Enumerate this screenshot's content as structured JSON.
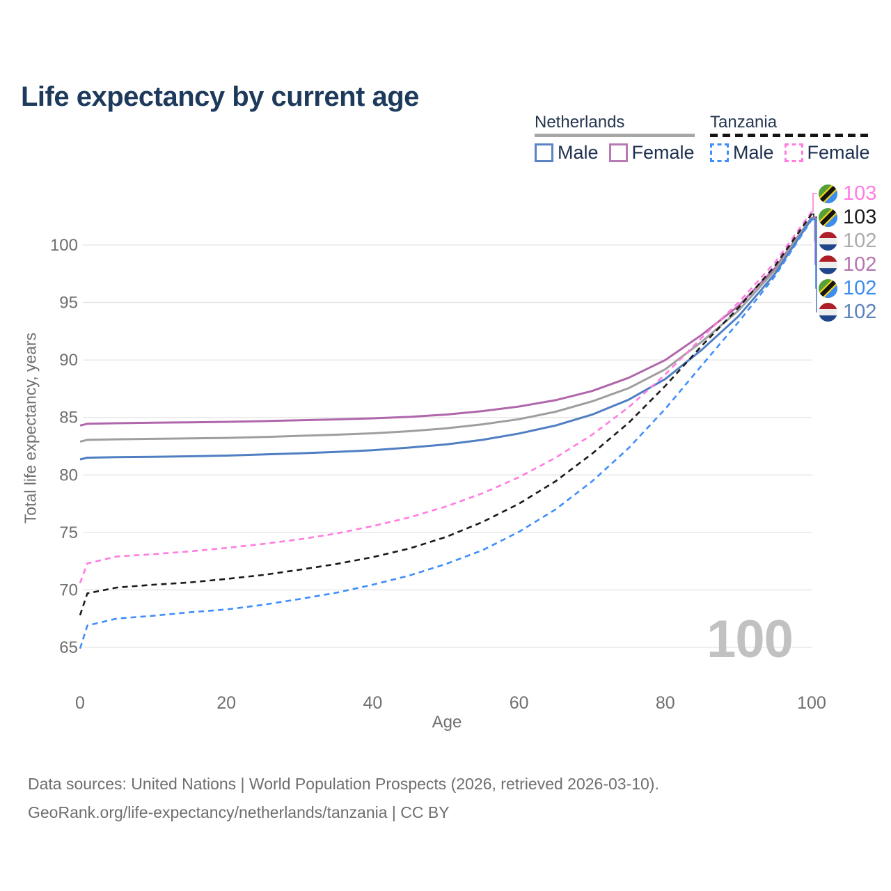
{
  "title": "Life expectancy by current age",
  "legend": {
    "groups": [
      {
        "label": "Netherlands",
        "line_style": "solid",
        "line_color": "#a6a6a6",
        "items": [
          {
            "label": "Male",
            "color": "#5b84c4",
            "style": "solid"
          },
          {
            "label": "Female",
            "color": "#b77bb4",
            "style": "solid"
          }
        ]
      },
      {
        "label": "Tanzania",
        "line_style": "dashed",
        "line_color": "#141414",
        "items": [
          {
            "label": "Male",
            "color": "#3f8efa",
            "style": "dashed"
          },
          {
            "label": "Female",
            "color": "#ff7ce0",
            "style": "dashed"
          }
        ]
      }
    ]
  },
  "watermark": "100",
  "footer": {
    "line1": "Data sources: United Nations | World Population Prospects (2026, retrieved 2026-03-10).",
    "line2": "GeoRank.org/life-expectancy/netherlands/tanzania | CC BY"
  },
  "end_labels": [
    {
      "value": "103",
      "flag": "tanzania",
      "series": "tz_female",
      "color": "#ff7ce0"
    },
    {
      "value": "103",
      "flag": "tanzania",
      "series": "tz_all",
      "color": "#1a1a1a"
    },
    {
      "value": "102",
      "flag": "netherlands",
      "series": "nl_all",
      "color": "#ababab"
    },
    {
      "value": "102",
      "flag": "netherlands",
      "series": "nl_female",
      "color": "#b573b0"
    },
    {
      "value": "102",
      "flag": "tanzania",
      "series": "tz_male",
      "color": "#3b8af5"
    },
    {
      "value": "102",
      "flag": "netherlands",
      "series": "nl_male",
      "color": "#5b82c0"
    }
  ],
  "chart_data": {
    "type": "line",
    "title": "Life expectancy by current age",
    "xlabel": "Age",
    "ylabel": "Total life expectancy, years",
    "x": [
      0,
      1,
      5,
      10,
      15,
      20,
      25,
      30,
      35,
      40,
      45,
      50,
      55,
      60,
      65,
      70,
      75,
      80,
      85,
      90,
      95,
      100
    ],
    "xticks": [
      0,
      20,
      40,
      60,
      80,
      100
    ],
    "yticks": [
      65,
      70,
      75,
      80,
      85,
      90,
      95,
      100
    ],
    "xlim": [
      0,
      100
    ],
    "ylim": [
      64,
      104
    ],
    "grid": "horizontal",
    "legend_position": "top-right",
    "series": [
      {
        "key": "nl_female",
        "name": "Netherlands Female",
        "country": "Netherlands",
        "sex": "Female",
        "style": "solid",
        "color": "#b066ab",
        "end_label": "102",
        "values": [
          84.3,
          84.45,
          84.5,
          84.55,
          84.58,
          84.62,
          84.68,
          84.75,
          84.83,
          84.92,
          85.05,
          85.25,
          85.55,
          85.95,
          86.5,
          87.3,
          88.45,
          90.0,
          92.2,
          94.7,
          98.0,
          102.4
        ]
      },
      {
        "key": "nl_all",
        "name": "Netherlands Both sexes",
        "country": "Netherlands",
        "sex": "All",
        "style": "solid",
        "color": "#9e9e9e",
        "end_label": "102",
        "values": [
          82.9,
          83.05,
          83.1,
          83.14,
          83.18,
          83.22,
          83.3,
          83.4,
          83.5,
          83.62,
          83.8,
          84.05,
          84.4,
          84.85,
          85.5,
          86.4,
          87.55,
          89.2,
          91.6,
          94.3,
          97.8,
          102.4
        ]
      },
      {
        "key": "nl_male",
        "name": "Netherlands Male",
        "country": "Netherlands",
        "sex": "Male",
        "style": "solid",
        "color": "#4f7ec2",
        "end_label": "102",
        "values": [
          81.35,
          81.5,
          81.55,
          81.58,
          81.62,
          81.68,
          81.78,
          81.88,
          82.0,
          82.15,
          82.38,
          82.65,
          83.05,
          83.6,
          84.3,
          85.25,
          86.55,
          88.35,
          90.9,
          93.8,
          97.5,
          102.3
        ]
      },
      {
        "key": "tz_female",
        "name": "Tanzania Female",
        "country": "Tanzania",
        "sex": "Female",
        "style": "dashed",
        "color": "#ff7ce0",
        "end_label": "103",
        "values": [
          70.6,
          72.3,
          72.9,
          73.1,
          73.35,
          73.65,
          74.0,
          74.4,
          74.9,
          75.55,
          76.3,
          77.25,
          78.4,
          79.8,
          81.5,
          83.5,
          85.9,
          88.75,
          91.95,
          95.0,
          98.5,
          102.9
        ]
      },
      {
        "key": "tz_all",
        "name": "Tanzania Both sexes",
        "country": "Tanzania",
        "sex": "All",
        "style": "dashed",
        "color": "#1a1a1a",
        "end_label": "103",
        "values": [
          67.8,
          69.7,
          70.2,
          70.45,
          70.65,
          70.95,
          71.3,
          71.75,
          72.25,
          72.85,
          73.6,
          74.6,
          75.9,
          77.5,
          79.45,
          81.85,
          84.55,
          87.75,
          91.25,
          94.55,
          98.2,
          102.7
        ]
      },
      {
        "key": "tz_male",
        "name": "Tanzania Male",
        "country": "Tanzania",
        "sex": "Male",
        "style": "dashed",
        "color": "#3f8efa",
        "end_label": "102",
        "values": [
          64.9,
          66.9,
          67.5,
          67.75,
          68.05,
          68.3,
          68.7,
          69.2,
          69.75,
          70.45,
          71.25,
          72.25,
          73.45,
          75.05,
          77.0,
          79.45,
          82.35,
          85.75,
          89.55,
          93.3,
          97.3,
          102.2
        ]
      }
    ]
  }
}
